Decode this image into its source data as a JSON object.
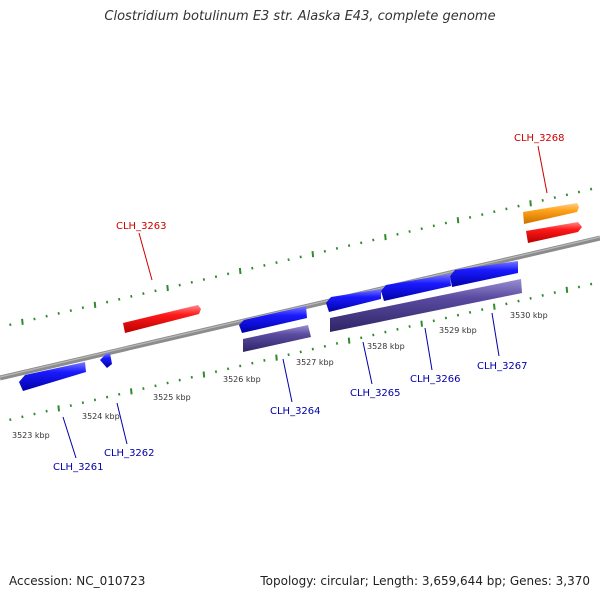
{
  "title": "Clostridium botulinum E3 str. Alaska E43, complete genome",
  "footer": {
    "accession": "Accession: NC_010723",
    "summary": "Topology: circular; Length: 3,659,644 bp; Genes: 3,370"
  },
  "colors": {
    "forward_gene": "#ff0000",
    "reverse_gene": "#0000ff",
    "rna": "#ff9900",
    "cds": "#4c3d8c",
    "backbone": "#8c8c8c",
    "ticks": "#2e8b2e",
    "forward_label": "#cc0000",
    "reverse_label": "#0000aa"
  },
  "scale_labels": [
    "3523 kbp",
    "3524 kbp",
    "3525 kbp",
    "3526 kbp",
    "3527 kbp",
    "3528 kbp",
    "3529 kbp",
    "3530 kbp"
  ],
  "gene_labels": {
    "CLH_3261": "CLH_3261",
    "CLH_3262": "CLH_3262",
    "CLH_3263": "CLH_3263",
    "CLH_3264": "CLH_3264",
    "CLH_3265": "CLH_3265",
    "CLH_3266": "CLH_3266",
    "CLH_3267": "CLH_3267",
    "CLH_3268": "CLH_3268"
  }
}
